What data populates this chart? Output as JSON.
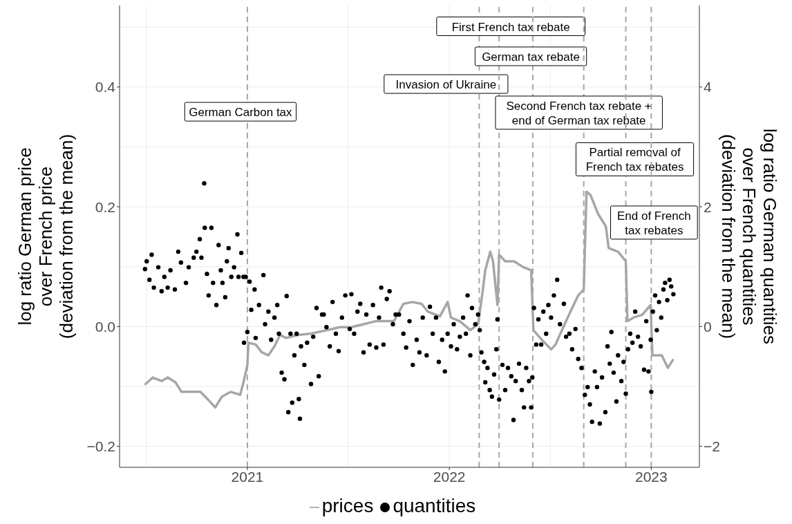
{
  "chart_data": {
    "type": "scatter",
    "ylabel": "log ratio German price\nover French price\n(deviation from the mean)",
    "y2label": "log ratio German quantities\nover French quantities\n(deviation from the mean)",
    "xlim": [
      "2020-05-15",
      "2023-03-29"
    ],
    "xticks": [
      {
        "value": "2021-01-01",
        "label": "2021"
      },
      {
        "value": "2022-01-01",
        "label": "2022"
      },
      {
        "value": "2023-01-01",
        "label": "2023"
      }
    ],
    "ylim": [
      -0.235,
      0.536
    ],
    "yticks": [
      {
        "value": -0.2,
        "label": "−0.2"
      },
      {
        "value": 0,
        "label": "0.0"
      },
      {
        "value": 0.2,
        "label": "0.2"
      },
      {
        "value": 0.4,
        "label": "0.4"
      }
    ],
    "y2lim": [
      -2.35,
      5.36
    ],
    "y2ticks": [
      {
        "value": -2,
        "label": "−2"
      },
      0,
      2,
      4
    ],
    "grid": true,
    "legend": "bottom",
    "ref_lines": [
      {
        "axis": "x",
        "value": "2021-01-01",
        "label": "German Carbon tax",
        "color": "#a6a6a6",
        "line_style": "dashed"
      },
      {
        "axis": "x",
        "value": "2022-02-24",
        "label": "Invasion of Ukraine",
        "color": "#a6a6a6",
        "line_style": "dashed"
      },
      {
        "axis": "x",
        "value": "2022-04-01",
        "label": "First French tax rebate",
        "color": "#a6a6a6",
        "line_style": "dashed"
      },
      {
        "axis": "x",
        "value": "2022-06-01",
        "label": "German tax rebate",
        "color": "#a6a6a6",
        "line_style": "dashed"
      },
      {
        "axis": "x",
        "value": "2022-09-01",
        "label": "Second French tax rebate +\nend of German tax rebate",
        "color": "#a6a6a6",
        "line_style": "dashed"
      },
      {
        "axis": "x",
        "value": "2022-11-16",
        "label": "Partial removal of\nFrench tax rebates",
        "color": "#a6a6a6",
        "line_style": "dashed"
      },
      {
        "axis": "x",
        "value": "2023-01-01",
        "label": "End of French\ntax rebates",
        "color": "#a6a6a6",
        "line_style": "dashed"
      }
    ],
    "series": [
      {
        "name": "quantities",
        "axis": "y2",
        "color": "#000000",
        "marker": "circle",
        "x": [
          "2020-06-30",
          "2020-07-03",
          "2020-07-08",
          "2020-07-12",
          "2020-07-16",
          "2020-07-24",
          "2020-07-30",
          "2020-08-04",
          "2020-08-10",
          "2020-08-15",
          "2020-08-23",
          "2020-08-29",
          "2020-09-03",
          "2020-09-12",
          "2020-09-17",
          "2020-09-26",
          "2020-10-01",
          "2020-10-07",
          "2020-10-10",
          "2020-10-15",
          "2020-10-16",
          "2020-10-20",
          "2020-10-23",
          "2020-10-28",
          "2020-10-31",
          "2020-11-06",
          "2020-11-10",
          "2020-11-14",
          "2020-11-17",
          "2020-11-22",
          "2020-11-25",
          "2020-11-28",
          "2020-12-03",
          "2020-12-08",
          "2020-12-14",
          "2020-12-16",
          "2020-12-21",
          "2020-12-25",
          "2020-12-29",
          "2020-12-26",
          "2021-01-01",
          "2021-01-05",
          "2021-01-08",
          "2021-01-14",
          "2021-01-16",
          "2021-01-22",
          "2021-01-30",
          "2021-02-02",
          "2021-02-08",
          "2021-02-13",
          "2021-02-19",
          "2021-02-24",
          "2021-02-27",
          "2021-03-04",
          "2021-03-09",
          "2021-03-13",
          "2021-03-16",
          "2021-03-20",
          "2021-03-23",
          "2021-03-27",
          "2021-03-31",
          "2021-04-04",
          "2021-04-06",
          "2021-04-08",
          "2021-04-14",
          "2021-04-19",
          "2021-04-26",
          "2021-04-30",
          "2021-05-06",
          "2021-05-10",
          "2021-05-16",
          "2021-05-19",
          "2021-05-24",
          "2021-05-30",
          "2021-06-04",
          "2021-06-10",
          "2021-06-15",
          "2021-06-21",
          "2021-06-27",
          "2021-07-05",
          "2021-07-08",
          "2021-07-13",
          "2021-07-19",
          "2021-07-24",
          "2021-07-30",
          "2021-08-04",
          "2021-08-10",
          "2021-08-16",
          "2021-08-22",
          "2021-08-27",
          "2021-08-31",
          "2021-09-04",
          "2021-09-10",
          "2021-09-15",
          "2021-09-21",
          "2021-09-26",
          "2021-10-02",
          "2021-10-10",
          "2021-10-15",
          "2021-10-21",
          "2021-10-27",
          "2021-11-03",
          "2021-11-08",
          "2021-11-14",
          "2021-11-21",
          "2021-11-27",
          "2021-12-02",
          "2021-12-08",
          "2021-12-13",
          "2021-12-19",
          "2021-12-24",
          "2021-12-29",
          "2022-01-04",
          "2022-01-09",
          "2022-01-15",
          "2022-01-20",
          "2022-01-26",
          "2022-01-31",
          "2022-02-03",
          "2022-02-08",
          "2022-02-11",
          "2022-02-17",
          "2022-02-22",
          "2022-02-25",
          "2022-02-28",
          "2022-03-05",
          "2022-03-07",
          "2022-03-11",
          "2022-03-15",
          "2022-03-19",
          "2022-03-23",
          "2022-03-27",
          "2022-03-29",
          "2022-04-01",
          "2022-04-07",
          "2022-04-12",
          "2022-04-17",
          "2022-04-23",
          "2022-04-27",
          "2022-05-01",
          "2022-05-07",
          "2022-05-12",
          "2022-05-16",
          "2022-05-20",
          "2022-05-25",
          "2022-05-29",
          "2022-05-31",
          "2022-06-03",
          "2022-06-07",
          "2022-06-11",
          "2022-06-16",
          "2022-06-20",
          "2022-06-25",
          "2022-06-29",
          "2022-07-04",
          "2022-07-09",
          "2022-07-15",
          "2022-07-20",
          "2022-07-27",
          "2022-07-31",
          "2022-08-06",
          "2022-08-11",
          "2022-08-17",
          "2022-08-22",
          "2022-08-28",
          "2022-09-03",
          "2022-09-08",
          "2022-09-12",
          "2022-09-16",
          "2022-09-21",
          "2022-09-25",
          "2022-09-30",
          "2022-10-04",
          "2022-10-10",
          "2022-10-14",
          "2022-10-18",
          "2022-10-21",
          "2022-10-25",
          "2022-10-30",
          "2022-11-02",
          "2022-11-08",
          "2022-11-12",
          "2022-11-16",
          "2022-11-20",
          "2022-11-24",
          "2022-11-28",
          "2022-12-03",
          "2022-12-08",
          "2022-12-13",
          "2022-12-19",
          "2022-12-23",
          "2022-12-27",
          "2022-12-31",
          "2023-01-01",
          "2023-01-04",
          "2023-01-08",
          "2023-01-11",
          "2023-01-15",
          "2023-01-19",
          "2023-01-23",
          "2023-01-26",
          "2023-01-30",
          "2023-02-03",
          "2023-02-06",
          "2023-02-10"
        ],
        "values": [
          0.96,
          1.09,
          0.78,
          1.2,
          0.65,
          0.99,
          0.59,
          0.83,
          0.65,
          0.94,
          0.62,
          1.25,
          1.07,
          0.73,
          0.99,
          1.15,
          1.25,
          1.46,
          1.15,
          2.39,
          1.65,
          0.88,
          0.52,
          1.65,
          0.73,
          0.36,
          1.36,
          0.94,
          0.73,
          0.49,
          1.09,
          1.31,
          0.83,
          0.99,
          1.54,
          0.83,
          1.23,
          0.83,
          0.83,
          -0.27,
          -0.09,
          0.75,
          0.28,
          0.62,
          -0.19,
          0.36,
          0.86,
          0.04,
          0.25,
          -0.22,
          0.15,
          0.36,
          -0.12,
          -0.77,
          -0.88,
          0.51,
          -1.43,
          -0.12,
          -1.27,
          -0.48,
          -0.12,
          -1.21,
          -1.54,
          -0.33,
          -0.64,
          -0.27,
          -0.96,
          -0.17,
          0.31,
          -0.83,
          0.2,
          0.2,
          -0.01,
          -0.33,
          0.41,
          -0.12,
          -0.41,
          0.15,
          0.52,
          -0.04,
          0.54,
          -0.12,
          0.25,
          0.38,
          -0.43,
          0.2,
          -0.3,
          0.36,
          -0.35,
          0.15,
          0.65,
          -0.3,
          0.46,
          0.59,
          0.04,
          0.2,
          0.2,
          -0.12,
          -0.35,
          0.09,
          -0.64,
          -0.22,
          -0.43,
          0.15,
          -0.48,
          0.33,
          -0.12,
          0.15,
          -0.59,
          -0.22,
          -0.75,
          -0.12,
          -0.33,
          0.04,
          -0.38,
          -0.17,
          0.15,
          -0.12,
          0.52,
          -0.48,
          0.31,
          0.04,
          0.2,
          -0.06,
          -0.43,
          -0.59,
          -0.93,
          -0.69,
          -1.06,
          -1.17,
          -0.8,
          -0.38,
          0.12,
          -1.22,
          -0.64,
          -1.06,
          -0.69,
          -0.83,
          -1.56,
          -0.91,
          -0.62,
          -1.06,
          -1.35,
          -0.69,
          -0.91,
          -1.35,
          -0.85,
          0.31,
          -0.3,
          0.12,
          -0.3,
          0.25,
          -0.12,
          0.36,
          0.15,
          0.52,
          0.78,
          0.04,
          0.38,
          -0.17,
          -0.12,
          -0.38,
          -0.04,
          -0.54,
          -0.69,
          -1.14,
          -1.01,
          -1.3,
          -1.59,
          -0.75,
          -1.01,
          -1.62,
          -0.85,
          -1.43,
          -0.33,
          -0.62,
          -0.09,
          -0.77,
          -1.25,
          -0.48,
          -0.91,
          -0.59,
          -1.12,
          -0.38,
          -0.12,
          -0.27,
          0.25,
          -0.17,
          -0.33,
          -0.72,
          0.09,
          -0.75,
          -0.22,
          -1.09,
          0.25,
          0.52,
          -0.06,
          0.41,
          0.15,
          0.62,
          0.73,
          0.44,
          0.78,
          0.67,
          0.54
        ]
      },
      {
        "name": "prices",
        "type": "line",
        "color": "#a6a6a6",
        "marker": "none",
        "line_style": "solid",
        "x": [
          "2020-07-01",
          "2020-07-14",
          "2020-07-30",
          "2020-08-10",
          "2020-08-24",
          "2020-09-04",
          "2020-09-21",
          "2020-10-08",
          "2020-10-22",
          "2020-11-04",
          "2020-11-16",
          "2020-12-02",
          "2020-12-19",
          "2020-12-25",
          "2021-01-01",
          "2021-01-03",
          "2021-01-16",
          "2021-01-27",
          "2021-02-08",
          "2021-02-19",
          "2021-03-01",
          "2021-03-12",
          "2021-04-03",
          "2021-04-25",
          "2021-05-25",
          "2021-06-17",
          "2021-07-08",
          "2021-07-30",
          "2021-08-21",
          "2021-09-23",
          "2021-10-10",
          "2021-10-26",
          "2021-11-12",
          "2021-11-23",
          "2021-12-15",
          "2021-12-29",
          "2022-01-04",
          "2022-01-20",
          "2022-02-08",
          "2022-02-22",
          "2022-03-02",
          "2022-03-07",
          "2022-03-16",
          "2022-03-21",
          "2022-03-29",
          "2022-04-01",
          "2022-04-12",
          "2022-04-28",
          "2022-05-15",
          "2022-05-29",
          "2022-06-02",
          "2022-06-17",
          "2022-07-04",
          "2022-07-12",
          "2022-07-26",
          "2022-08-11",
          "2022-08-22",
          "2022-09-01",
          "2022-09-06",
          "2022-09-13",
          "2022-09-27",
          "2022-10-11",
          "2022-10-16",
          "2022-11-02",
          "2022-11-16",
          "2022-11-19",
          "2022-11-30",
          "2022-12-16",
          "2022-12-31",
          "2023-01-03",
          "2023-01-20",
          "2023-01-31",
          "2023-02-09"
        ],
        "values": [
          -0.096,
          -0.085,
          -0.091,
          -0.085,
          -0.093,
          -0.109,
          -0.109,
          -0.109,
          -0.122,
          -0.135,
          -0.117,
          -0.109,
          -0.114,
          -0.093,
          -0.064,
          -0.027,
          -0.03,
          -0.043,
          -0.048,
          -0.033,
          -0.014,
          -0.019,
          -0.014,
          -0.012,
          -0.006,
          -0.001,
          -0.001,
          0.004,
          0.009,
          0.009,
          0.038,
          0.041,
          0.038,
          0.025,
          0.017,
          0.041,
          0.015,
          0.009,
          -0.006,
          0.004,
          0.057,
          0.094,
          0.125,
          0.109,
          0.036,
          0.12,
          0.109,
          0.109,
          0.099,
          0.094,
          -0.006,
          -0.022,
          -0.038,
          -0.03,
          -0.001,
          0.031,
          0.052,
          0.062,
          0.225,
          0.22,
          0.188,
          0.167,
          0.131,
          0.125,
          0.109,
          0.009,
          0.015,
          0.02,
          0.036,
          -0.048,
          -0.048,
          -0.069,
          -0.056
        ]
      }
    ]
  }
}
